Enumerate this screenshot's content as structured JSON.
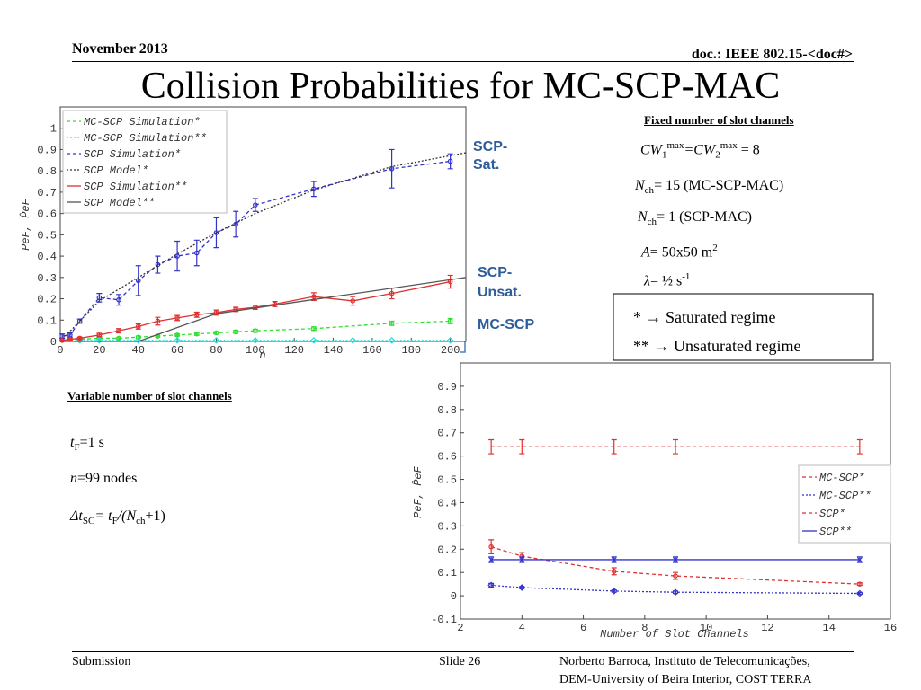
{
  "header": {
    "date": "November 2013",
    "doc": "doc.: IEEE 802.15-<doc#>"
  },
  "title": "Collision Probabilities for MC-SCP-MAC",
  "fixed": {
    "heading": "Fixed number of slot channels",
    "cw": [
      "CW",
      "1",
      "max",
      "=CW",
      "2",
      "max",
      " = 8"
    ],
    "nch1": [
      "N",
      "ch",
      "= 15 (MC-SCP-MAC)"
    ],
    "nch2": [
      "N",
      "ch",
      "= 1 (SCP-MAC)"
    ],
    "area": [
      "A",
      "= 50x50 m",
      "2"
    ],
    "lambda": [
      "λ",
      "= ½ s",
      "-1"
    ]
  },
  "regimes": [
    "* → Saturated regime",
    "** → Unsaturated regime"
  ],
  "brackets": [
    [
      "SCP-",
      "Sat."
    ],
    [
      "SCP-",
      "Unsat."
    ],
    [
      "MC-SCP"
    ]
  ],
  "variable": {
    "heading": "Variable number of slot channels",
    "tf": [
      "t",
      "F",
      "=1 s"
    ],
    "n": [
      "n",
      "=99 nodes"
    ],
    "dt": [
      "Δt",
      "SC",
      "= t",
      "F",
      "/(N",
      "ch",
      "+1)"
    ]
  },
  "footer": {
    "left": "Submission",
    "slide": "Slide 26",
    "author1": "Norberto Barroca, Instituto de Telecomunicações,",
    "author2": "DEM-University of Beira Interior, COST TERRA"
  },
  "chart_data": [
    {
      "type": "line",
      "xlabel": "n",
      "ylabel": "PeF, P̂eF",
      "xlim": [
        0,
        208
      ],
      "ylim": [
        0,
        1.1
      ],
      "xticks": [
        0,
        20,
        40,
        60,
        80,
        100,
        120,
        140,
        160,
        180,
        200
      ],
      "yticks": [
        0,
        0.1,
        0.2,
        0.3,
        0.4,
        0.5,
        0.6,
        0.7,
        0.8,
        0.9,
        1
      ],
      "grid": false,
      "legend": "upper left",
      "series": [
        {
          "name": "MC-SCP Simulation*",
          "color": "#33dd33",
          "dash": "dashed",
          "marker": "o",
          "x": [
            1,
            5,
            10,
            20,
            30,
            40,
            50,
            60,
            70,
            80,
            90,
            100,
            130,
            170,
            200
          ],
          "values": [
            0.005,
            0.01,
            0.01,
            0.015,
            0.015,
            0.02,
            0.025,
            0.03,
            0.035,
            0.04,
            0.045,
            0.05,
            0.06,
            0.085,
            0.095
          ],
          "errors": [
            0.003,
            0.003,
            0.003,
            0.004,
            0.004,
            0.005,
            0.005,
            0.005,
            0.006,
            0.006,
            0.007,
            0.007,
            0.008,
            0.01,
            0.012
          ]
        },
        {
          "name": "MC-SCP Simulation**",
          "color": "#33dddd",
          "dash": "dotted",
          "marker": "d",
          "x": [
            10,
            20,
            40,
            60,
            80,
            100,
            130,
            150,
            170,
            200
          ],
          "values": [
            0.005,
            0.005,
            0.005,
            0.005,
            0.005,
            0.005,
            0.005,
            0.005,
            0.005,
            0.005
          ]
        },
        {
          "name": "SCP Simulation*",
          "color": "#3333cc",
          "dash": "dashed",
          "marker": "o",
          "x": [
            1,
            5,
            10,
            20,
            30,
            40,
            50,
            60,
            70,
            80,
            90,
            100,
            130,
            170,
            200
          ],
          "values": [
            0.025,
            0.03,
            0.095,
            0.205,
            0.195,
            0.285,
            0.36,
            0.4,
            0.415,
            0.51,
            0.55,
            0.64,
            0.715,
            0.81,
            0.845
          ],
          "errors": [
            0.01,
            0.01,
            0.01,
            0.02,
            0.025,
            0.07,
            0.04,
            0.07,
            0.06,
            0.07,
            0.06,
            0.03,
            0.035,
            0.09,
            0.035
          ]
        },
        {
          "name": "SCP Model*",
          "color": "#333333",
          "dash": "dotted",
          "marker": "none",
          "x": [
            0,
            20,
            40,
            60,
            80,
            100,
            130,
            170,
            208
          ],
          "values": [
            0,
            0.19,
            0.3,
            0.41,
            0.51,
            0.6,
            0.71,
            0.82,
            0.885
          ]
        },
        {
          "name": "SCP Simulation**",
          "color": "#e03030",
          "dash": "solid",
          "marker": "o",
          "x": [
            1,
            5,
            10,
            20,
            30,
            40,
            50,
            60,
            70,
            80,
            90,
            100,
            110,
            130,
            150,
            170,
            200
          ],
          "values": [
            0.005,
            0.01,
            0.015,
            0.03,
            0.05,
            0.07,
            0.095,
            0.11,
            0.125,
            0.135,
            0.15,
            0.16,
            0.175,
            0.21,
            0.19,
            0.225,
            0.28
          ],
          "errors": [
            0.003,
            0.004,
            0.005,
            0.008,
            0.01,
            0.012,
            0.018,
            0.012,
            0.012,
            0.012,
            0.01,
            0.01,
            0.012,
            0.018,
            0.02,
            0.025,
            0.03
          ]
        },
        {
          "name": "SCP Model**",
          "color": "#555555",
          "dash": "solid",
          "marker": "none",
          "x": [
            0,
            40,
            80,
            208
          ],
          "values": [
            0,
            0,
            0.13,
            0.3
          ]
        }
      ]
    },
    {
      "type": "line",
      "xlabel": "Number of Slot Channels",
      "ylabel": "PeF, P̂eF",
      "xlim": [
        2,
        16
      ],
      "ylim": [
        -0.1,
        1.0
      ],
      "xticks": [
        2,
        4,
        6,
        8,
        10,
        12,
        14,
        16
      ],
      "yticks": [
        -0.1,
        0,
        0.1,
        0.2,
        0.3,
        0.4,
        0.5,
        0.6,
        0.7,
        0.8,
        0.9
      ],
      "grid": false,
      "legend": "right",
      "x": [
        3,
        4,
        7,
        9,
        15
      ],
      "series": [
        {
          "name": "MC-SCP*",
          "color": "#e03030",
          "dash": "dashed",
          "marker": "o",
          "values": [
            0.21,
            0.17,
            0.105,
            0.085,
            0.05
          ],
          "errors": [
            0.03,
            0.015,
            0.015,
            0.015,
            0.005
          ]
        },
        {
          "name": "MC-SCP**",
          "color": "#3333cc",
          "dash": "dotted",
          "marker": "d",
          "values": [
            0.045,
            0.035,
            0.02,
            0.015,
            0.01
          ],
          "errors": [
            0.008,
            0.005,
            0.005,
            0.005,
            0.004
          ]
        },
        {
          "name": "SCP*",
          "color": "#e03030",
          "dash": "dashed",
          "marker": "none",
          "values": [
            0.64,
            0.64,
            0.64,
            0.64,
            0.64
          ],
          "errors": [
            0.03,
            0.03,
            0.03,
            0.03,
            0.03
          ]
        },
        {
          "name": "SCP**",
          "color": "#3333cc",
          "dash": "solid",
          "marker": "x",
          "values": [
            0.155,
            0.155,
            0.155,
            0.155,
            0.155
          ],
          "errors": [
            0.012,
            0.012,
            0.012,
            0.012,
            0.012
          ]
        }
      ]
    }
  ]
}
